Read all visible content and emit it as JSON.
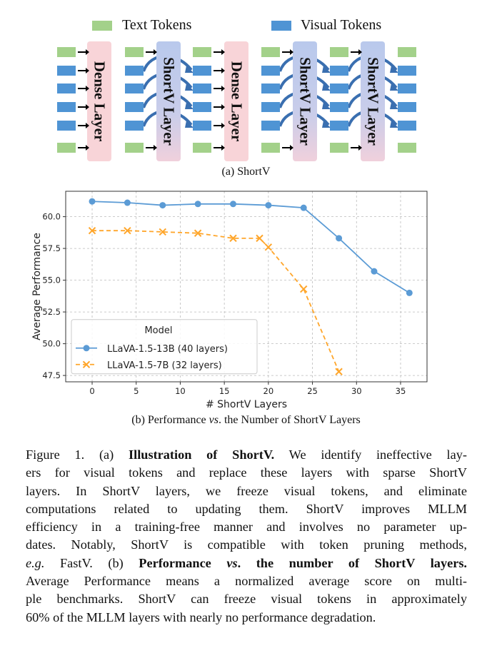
{
  "diagram": {
    "legend": {
      "text_tokens": "Text Tokens",
      "visual_tokens": "Visual Tokens"
    },
    "layers": [
      "Dense Layer",
      "ShortV Layer",
      "Dense Layer",
      "ShortV Layer",
      "ShortV Layer"
    ],
    "colors": {
      "text_token": "#a3d18a",
      "visual_token": "#4f94d4",
      "dense_layer": "#f8d4d8",
      "shortv_layer": "#b9c9ec",
      "arrow_curve": "#3a6fb0"
    },
    "subcaption": "(a) ShortV"
  },
  "chart_data": {
    "type": "line",
    "xlabel": "# ShortV Layers",
    "ylabel": "Average Performance",
    "xlim": [
      -3,
      38
    ],
    "ylim": [
      47.0,
      62.0
    ],
    "xticks": [
      0,
      5,
      10,
      15,
      20,
      25,
      30,
      35
    ],
    "yticks": [
      47.5,
      50.0,
      52.5,
      55.0,
      57.5,
      60.0
    ],
    "grid": true,
    "legend": {
      "title": "Model",
      "placement": "bottom-left"
    },
    "series": [
      {
        "name": "LLaVA-1.5-13B (40 layers)",
        "color": "#5b9bd5",
        "marker": "circle",
        "style": "solid",
        "x": [
          0,
          4,
          8,
          12,
          16,
          20,
          24,
          28,
          32,
          36
        ],
        "y": [
          61.2,
          61.1,
          60.9,
          61.0,
          61.0,
          60.9,
          60.7,
          58.3,
          55.7,
          54.0
        ]
      },
      {
        "name": "LLaVA-1.5-7B (32 layers)",
        "color": "#ffa62b",
        "marker": "x",
        "style": "dashed",
        "x": [
          0,
          4,
          8,
          12,
          16,
          19,
          20,
          24,
          28
        ],
        "y": [
          58.9,
          58.9,
          58.8,
          58.7,
          58.3,
          58.3,
          57.6,
          54.3,
          47.8
        ]
      }
    ],
    "subcaption": {
      "pre": "(b) Performance ",
      "vs": "vs",
      "post": ". the Number of ShortV Layers"
    }
  },
  "caption": {
    "l1a": "Figure 1. (a) ",
    "l1b": "Illustration of ShortV.",
    "l1c": " We identify ineffective lay-",
    "l2": "ers for visual tokens and replace these layers with sparse ShortV",
    "l3": "layers.  In ShortV layers, we freeze visual tokens, and eliminate",
    "l4": "computations related to updating them. ShortV improves MLLM",
    "l5": "efficiency in a training-free manner and involves no parameter up-",
    "l6": "dates. Notably, ShortV is compatible with token pruning methods,",
    "l7a": "e.g.",
    "l7b": " FastV. (b) ",
    "l7c": "Performance ",
    "l7d": "vs",
    "l7e": ". the number of ShortV layers.",
    "l8": "Average Performance means a normalized average score on multi-",
    "l9": "ple benchmarks. ShortV can freeze visual tokens in approximately",
    "l10": "60% of the MLLM layers with nearly no performance degradation."
  }
}
